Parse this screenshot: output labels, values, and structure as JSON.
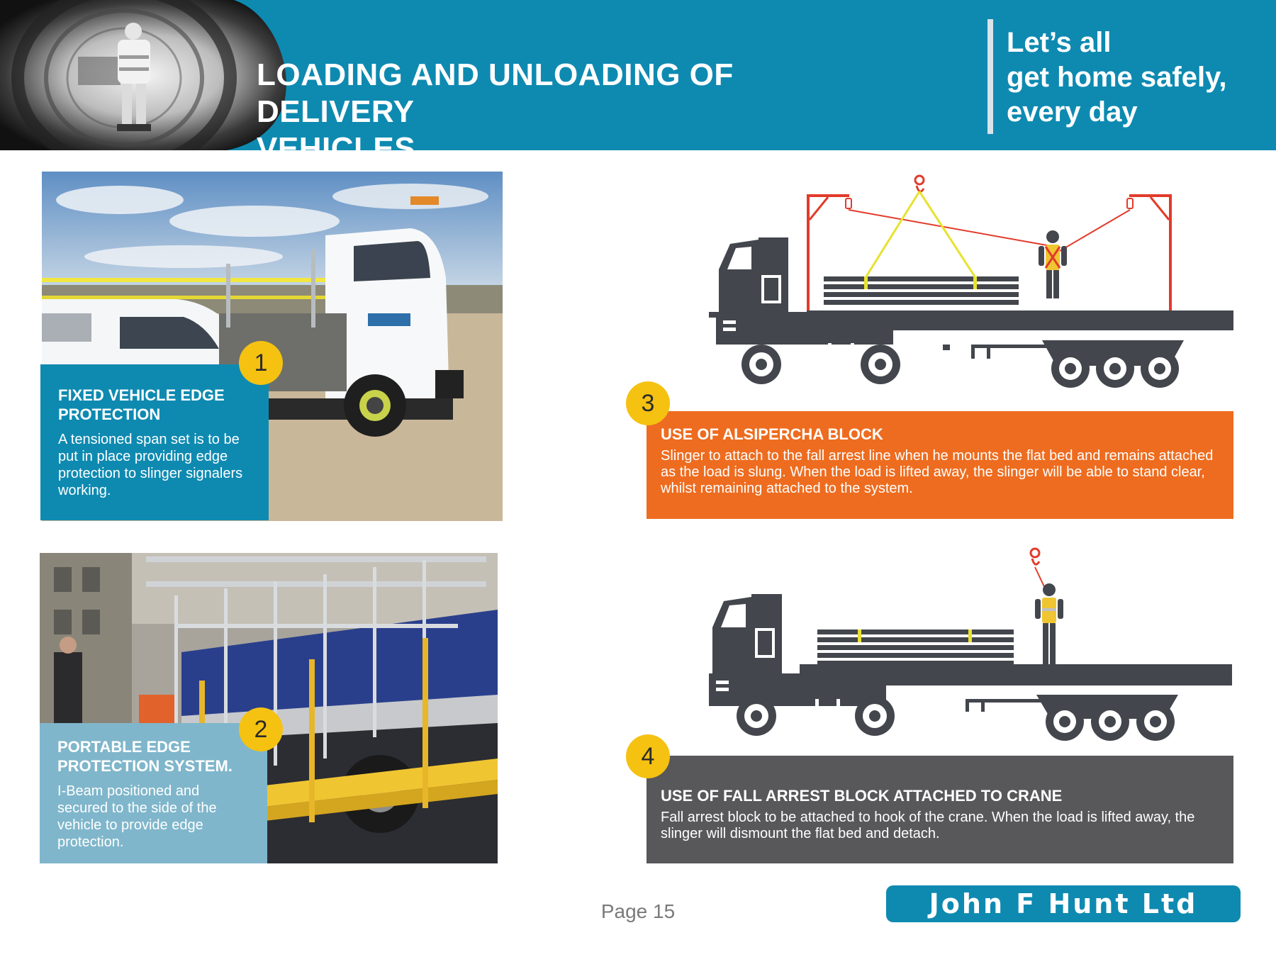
{
  "header": {
    "title_line1": "LOADING AND UNLOADING OF DELIVERY",
    "title_line2": "VEHICLES",
    "slogan": [
      "Let’s all",
      "get home safely,",
      "every day"
    ],
    "accent_color": "#0e8ab1"
  },
  "panels": [
    {
      "number": "1",
      "heading_line1": "FIXED VEHICLE EDGE",
      "heading_line2": "PROTECTION",
      "text": "A tensioned span set is to be put in place providing edge protection to slinger signalers working.",
      "color": "#0e8ab1"
    },
    {
      "number": "2",
      "heading_line1": "PORTABLE EDGE",
      "heading_line2": "PROTECTION SYSTEM.",
      "text": "I-Beam positioned and secured to the side of the vehicle to provide edge protection.",
      "color": "#7fb6cb"
    },
    {
      "number": "3",
      "heading": "USE OF ALSIPERCHA BLOCK",
      "text": "Slinger to attach to the fall arrest line when he mounts the flat bed and remains attached as the load is slung. When the load is lifted away, the slinger will be able to stand clear, whilst remaining attached to the system.",
      "color": "#ee6c1f"
    },
    {
      "number": "4",
      "heading": "USE OF FALL ARREST BLOCK ATTACHED TO CRANE",
      "text": "Fall arrest block to be attached to hook of the crane. When the load is lifted away, the slinger will dismount the flat bed and detach.",
      "color": "#58585a"
    }
  ],
  "icons": [
    "crane-hook-icon",
    "worker-icon",
    "truck-icon"
  ],
  "footer": {
    "page_label": "Page 15",
    "company": "John F Hunt Ltd"
  }
}
